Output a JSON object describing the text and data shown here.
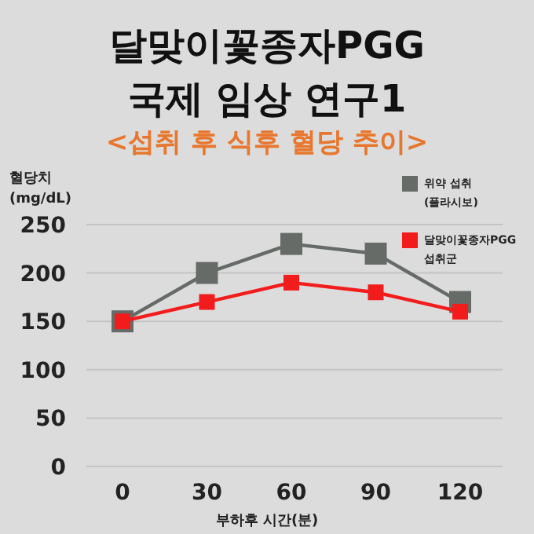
{
  "chart_data": {
    "type": "line",
    "title": "달맞이꽃종자PGG\n국제 임상 연구1",
    "subtitle": "<섭취 후 식후 혈당 추이>",
    "ylabel": "혈당치\n(mg/dL)",
    "xlabel": "부하후 시간(분)",
    "categories": [
      "0",
      "30",
      "60",
      "90",
      "120"
    ],
    "series": [
      {
        "name": "위약 섭취\n(플라시보)",
        "color": "#676b68",
        "values": [
          150,
          200,
          230,
          220,
          170
        ]
      },
      {
        "name": "달맞이꽃종자PGG\n섭취군",
        "color": "#f21c1c",
        "values": [
          150,
          170,
          190,
          180,
          160
        ]
      }
    ],
    "ylim": [
      0,
      250
    ],
    "yticks": [
      0,
      50,
      100,
      150,
      200,
      250
    ],
    "grid": "y",
    "legend": "top right",
    "marker": "square",
    "line_style": "solid"
  }
}
